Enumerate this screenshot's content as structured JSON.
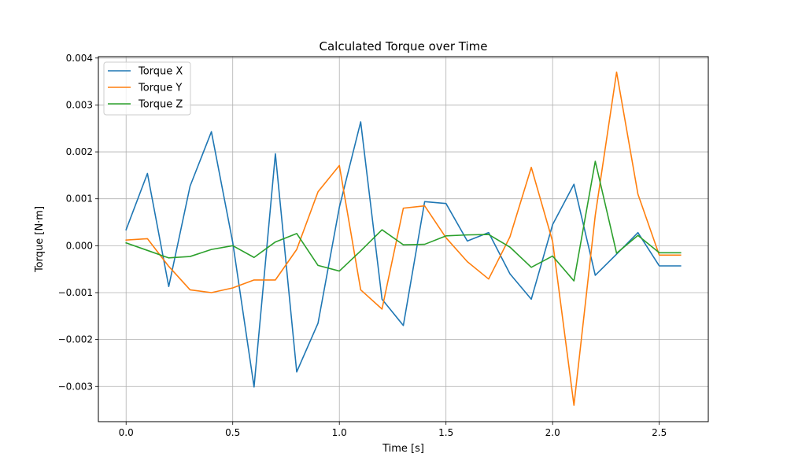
{
  "chart_data": {
    "type": "line",
    "title": "Calculated Torque over Time",
    "xlabel": "Time [s]",
    "ylabel": "Torque [N·m]",
    "xlim": [
      -0.13,
      2.73
    ],
    "ylim": [
      -0.00375,
      0.00403
    ],
    "xticks": [
      0.0,
      0.5,
      1.0,
      1.5,
      2.0,
      2.5
    ],
    "xtick_labels": [
      "0.0",
      "0.5",
      "1.0",
      "1.5",
      "2.0",
      "2.5"
    ],
    "yticks": [
      -0.003,
      -0.002,
      -0.001,
      0.0,
      0.001,
      0.002,
      0.003,
      0.004
    ],
    "ytick_labels": [
      "−0.003",
      "−0.002",
      "−0.001",
      "0.000",
      "0.001",
      "0.002",
      "0.003",
      "0.004"
    ],
    "grid": true,
    "legend_position": "top-left",
    "x": [
      0.0,
      0.1,
      0.2,
      0.3,
      0.4,
      0.5,
      0.6,
      0.7,
      0.8,
      0.9,
      1.0,
      1.1,
      1.2,
      1.3,
      1.4,
      1.5,
      1.6,
      1.7,
      1.8,
      1.9,
      2.0,
      2.1,
      2.2,
      2.3,
      2.4,
      2.5,
      2.6
    ],
    "series": [
      {
        "name": "Torque X",
        "color": "#1f77b4",
        "values": [
          0.00034,
          0.00154,
          -0.00087,
          0.00127,
          0.00243,
          7e-05,
          -0.00301,
          0.00196,
          -0.00269,
          -0.00165,
          0.00082,
          0.00264,
          -0.00114,
          -0.0017,
          0.00094,
          0.0009,
          0.0001,
          0.00028,
          -0.0006,
          -0.00114,
          0.00045,
          0.00131,
          -0.00063,
          -0.00018,
          0.00028,
          -0.00043,
          -0.00043
        ]
      },
      {
        "name": "Torque Y",
        "color": "#ff7f0e",
        "values": [
          0.00012,
          0.00015,
          -0.00044,
          -0.00094,
          -0.001,
          -0.0009,
          -0.00073,
          -0.00073,
          -8e-05,
          0.00115,
          0.00171,
          -0.00094,
          -0.00135,
          0.0008,
          0.00085,
          0.00017,
          -0.00034,
          -0.00071,
          0.00019,
          0.00167,
          9e-05,
          -0.0034,
          0.00065,
          0.0037,
          0.0011,
          -0.0002,
          -0.0002
        ]
      },
      {
        "name": "Torque Z",
        "color": "#2ca02c",
        "values": [
          6e-05,
          -0.0001,
          -0.00026,
          -0.00023,
          -8e-05,
          0.0,
          -0.00025,
          8e-05,
          0.00026,
          -0.00042,
          -0.00054,
          -0.00011,
          0.00034,
          2e-05,
          3e-05,
          0.00021,
          0.00023,
          0.00024,
          -3e-05,
          -0.00046,
          -0.00022,
          -0.00075,
          0.0018,
          -0.00016,
          0.00022,
          -0.00015,
          -0.00015
        ]
      }
    ]
  }
}
